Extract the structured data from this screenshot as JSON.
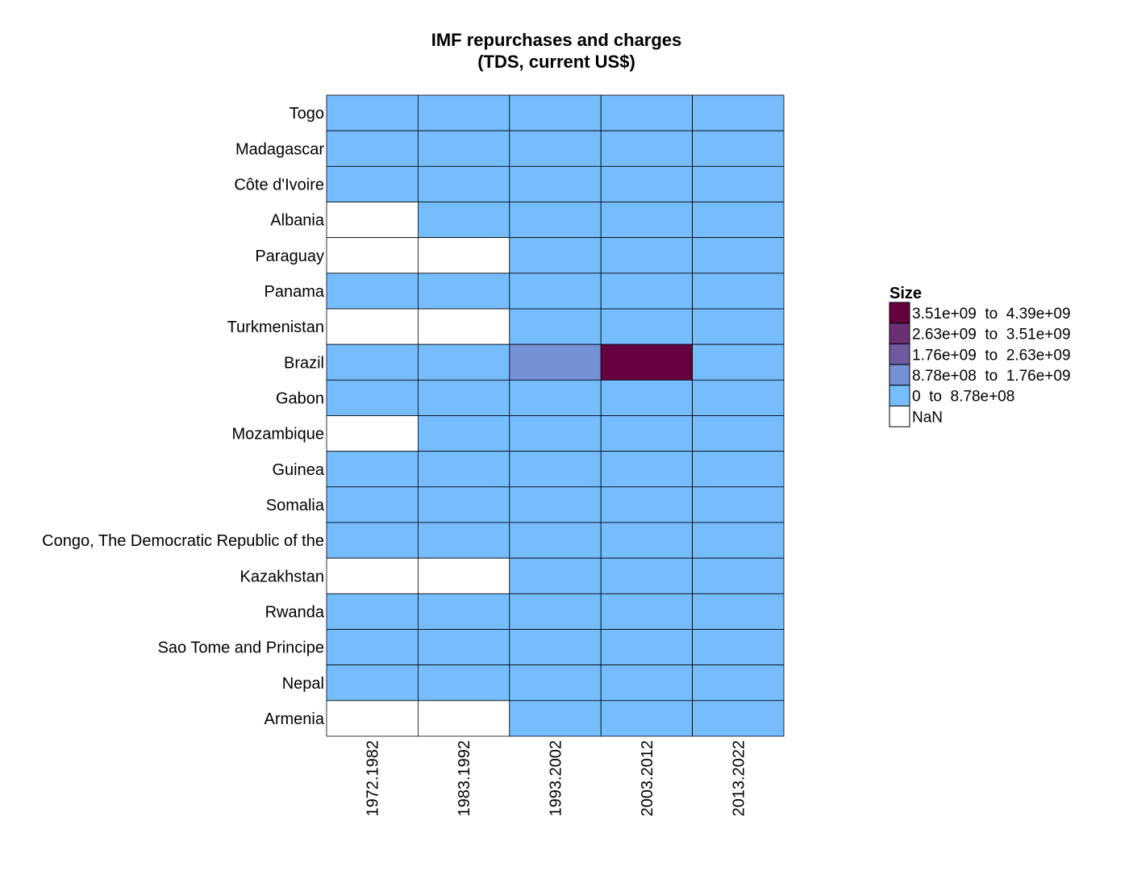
{
  "chart_data": {
    "type": "heatmap",
    "title_lines": [
      "IMF repurchases and charges",
      "(TDS, current US$)"
    ],
    "x_categories": [
      "1972.1982",
      "1983.1992",
      "1993.2002",
      "2003.2012",
      "2013.2022"
    ],
    "y_categories": [
      "Togo",
      "Madagascar",
      "Côte d'Ivoire",
      "Albania",
      "Paraguay",
      "Panama",
      "Turkmenistan",
      "Brazil",
      "Gabon",
      "Mozambique",
      "Guinea",
      "Somalia",
      "Congo, The Democratic Republic of the",
      "Kazakhstan",
      "Rwanda",
      "Sao Tome and Principe",
      "Nepal",
      "Armenia"
    ],
    "bins": [
      [
        0,
        0,
        0,
        0,
        0
      ],
      [
        0,
        0,
        0,
        0,
        0
      ],
      [
        0,
        0,
        0,
        0,
        0
      ],
      [
        null,
        0,
        0,
        0,
        0
      ],
      [
        null,
        null,
        0,
        0,
        0
      ],
      [
        0,
        0,
        0,
        0,
        0
      ],
      [
        null,
        null,
        0,
        0,
        0
      ],
      [
        0,
        0,
        1,
        4,
        0
      ],
      [
        0,
        0,
        0,
        0,
        0
      ],
      [
        null,
        0,
        0,
        0,
        0
      ],
      [
        0,
        0,
        0,
        0,
        0
      ],
      [
        0,
        0,
        0,
        0,
        0
      ],
      [
        0,
        0,
        0,
        0,
        0
      ],
      [
        null,
        null,
        0,
        0,
        0
      ],
      [
        0,
        0,
        0,
        0,
        0
      ],
      [
        0,
        0,
        0,
        0,
        0
      ],
      [
        0,
        0,
        0,
        0,
        0
      ],
      [
        null,
        null,
        0,
        0,
        0
      ]
    ],
    "legend": {
      "title": "Size",
      "items": [
        {
          "label": "3.51e+09  to  4.39e+09",
          "color": "#67003f"
        },
        {
          "label": "2.63e+09  to  3.51e+09",
          "color": "#6b2f74"
        },
        {
          "label": "1.76e+09  to  2.63e+09",
          "color": "#6e5b9f"
        },
        {
          "label": "8.78e+08  to  1.76e+09",
          "color": "#7391d4"
        },
        {
          "label": "0  to  8.78e+08",
          "color": "#76bdfd"
        },
        {
          "label": "NaN",
          "color": "#ffffff"
        }
      ]
    },
    "bin_colors": [
      "#76bdfd",
      "#7391d4",
      "#6e5b9f",
      "#6b2f74",
      "#67003f"
    ],
    "nan_color": "#ffffff"
  }
}
